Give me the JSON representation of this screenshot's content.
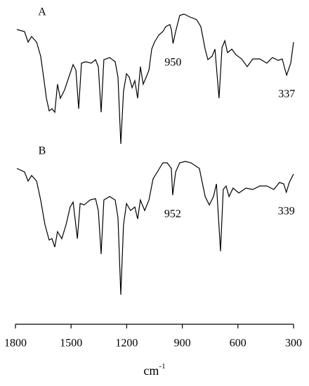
{
  "chart_data": {
    "type": "line",
    "xlabel": [
      "cm",
      "-1"
    ],
    "xlim": [
      1800,
      300
    ],
    "ylim": [
      0,
      450
    ],
    "xticks": [
      1800,
      1500,
      1200,
      900,
      600,
      300
    ],
    "series": [
      {
        "name": "A",
        "color": "#000000",
        "annotations": [
          950,
          337
        ],
        "x": [
          1792,
          1751,
          1732,
          1713,
          1686,
          1664,
          1648,
          1633,
          1618,
          1603,
          1588,
          1573,
          1558,
          1535,
          1512,
          1489,
          1474,
          1459,
          1444,
          1421,
          1391,
          1368,
          1353,
          1338,
          1323,
          1292,
          1262,
          1247,
          1232,
          1217,
          1201,
          1186,
          1171,
          1156,
          1141,
          1126,
          1111,
          1095,
          1080,
          1065,
          1050,
          1027,
          1005,
          989,
          967,
          959,
          950,
          936,
          914,
          891,
          861,
          823,
          800,
          777,
          762,
          739,
          724,
          702,
          686,
          671,
          656,
          633,
          611,
          580,
          550,
          520,
          482,
          444,
          414,
          383,
          361,
          345,
          337,
          315,
          300
        ],
        "values": [
          420,
          417,
          402,
          410,
          402,
          382,
          352,
          322,
          304,
          307,
          302,
          342,
          322,
          334,
          352,
          370,
          362,
          307,
          372,
          374,
          372,
          377,
          367,
          302,
          377,
          380,
          374,
          352,
          257,
          332,
          357,
          352,
          337,
          347,
          322,
          367,
          342,
          352,
          362,
          392,
          402,
          412,
          417,
          424,
          427,
          420,
          400,
          417,
          440,
          442,
          438,
          434,
          424,
          392,
          377,
          382,
          392,
          322,
          394,
          404,
          387,
          392,
          384,
          378,
          367,
          378,
          378,
          372,
          380,
          376,
          378,
          362,
          355,
          372,
          402
        ]
      },
      {
        "name": "B",
        "color": "#000000",
        "annotations": [
          952,
          339
        ],
        "x": [
          1792,
          1751,
          1732,
          1713,
          1686,
          1664,
          1641,
          1618,
          1603,
          1588,
          1573,
          1550,
          1527,
          1505,
          1489,
          1466,
          1451,
          1429,
          1398,
          1368,
          1353,
          1338,
          1323,
          1292,
          1262,
          1247,
          1232,
          1217,
          1201,
          1179,
          1156,
          1141,
          1126,
          1103,
          1080,
          1058,
          1035,
          1005,
          982,
          959,
          952,
          936,
          914,
          884,
          853,
          808,
          777,
          754,
          732,
          716,
          694,
          679,
          664,
          648,
          626,
          595,
          557,
          520,
          482,
          444,
          406,
          376,
          353,
          339,
          323,
          300
        ],
        "values": [
          222,
          217,
          204,
          212,
          204,
          177,
          142,
          120,
          122,
          110,
          132,
          122,
          142,
          167,
          174,
          122,
          172,
          170,
          177,
          179,
          162,
          100,
          177,
          182,
          177,
          152,
          42,
          142,
          172,
          162,
          167,
          150,
          177,
          162,
          177,
          207,
          217,
          230,
          230,
          222,
          184,
          217,
          230,
          232,
          230,
          222,
          182,
          170,
          182,
          200,
          104,
          192,
          197,
          182,
          194,
          187,
          194,
          192,
          197,
          197,
          192,
          202,
          200,
          188,
          202,
          214
        ]
      }
    ]
  }
}
